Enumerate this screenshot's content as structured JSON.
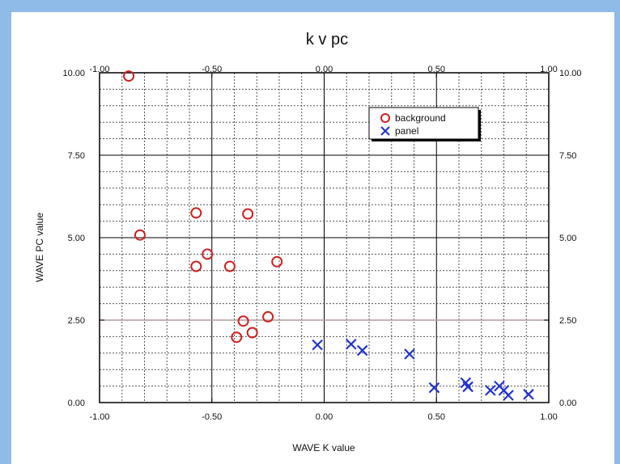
{
  "chart_data": {
    "type": "scatter",
    "title": "k v pc",
    "xlabel": "WAVE K value",
    "ylabel": "WAVE PC value",
    "xlim": [
      -1.0,
      1.0
    ],
    "ylim": [
      0.0,
      10.0
    ],
    "x_ticks": [
      "-1.00",
      "-0.50",
      "0.00",
      "0.50",
      "1.00"
    ],
    "y_ticks": [
      "0.00",
      "2.50",
      "5.00",
      "7.50",
      "10.00"
    ],
    "grid": true,
    "legend_position": "top-right",
    "series": [
      {
        "name": "background",
        "marker": "circle",
        "color": "#cc2222",
        "points": [
          {
            "x": -0.87,
            "y": 9.9
          },
          {
            "x": -0.82,
            "y": 5.08
          },
          {
            "x": -0.57,
            "y": 5.75
          },
          {
            "x": -0.57,
            "y": 4.13
          },
          {
            "x": -0.52,
            "y": 4.5
          },
          {
            "x": -0.42,
            "y": 4.13
          },
          {
            "x": -0.34,
            "y": 5.72
          },
          {
            "x": -0.21,
            "y": 4.27
          },
          {
            "x": -0.36,
            "y": 2.47
          },
          {
            "x": -0.25,
            "y": 2.6
          },
          {
            "x": -0.32,
            "y": 2.12
          },
          {
            "x": -0.39,
            "y": 1.98
          }
        ]
      },
      {
        "name": "panel",
        "marker": "x",
        "color": "#2233cc",
        "points": [
          {
            "x": -0.03,
            "y": 1.75
          },
          {
            "x": 0.12,
            "y": 1.77
          },
          {
            "x": 0.17,
            "y": 1.58
          },
          {
            "x": 0.38,
            "y": 1.47
          },
          {
            "x": 0.49,
            "y": 0.45
          },
          {
            "x": 0.63,
            "y": 0.6
          },
          {
            "x": 0.64,
            "y": 0.48
          },
          {
            "x": 0.74,
            "y": 0.37
          },
          {
            "x": 0.78,
            "y": 0.5
          },
          {
            "x": 0.8,
            "y": 0.37
          },
          {
            "x": 0.82,
            "y": 0.22
          },
          {
            "x": 0.91,
            "y": 0.25
          }
        ]
      }
    ]
  },
  "colors": {
    "frame": "#8fbbe8",
    "panel": "#ffffff",
    "axis": "#000000",
    "highlight_line": "#b09a9a"
  }
}
